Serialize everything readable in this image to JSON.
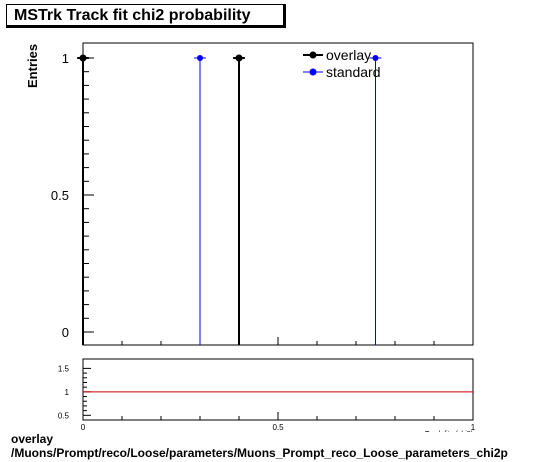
{
  "title": "MSTrk Track fit chi2 probability",
  "footer": {
    "line1": "overlay",
    "line2": "/Muons/Prompt/reco/Loose/parameters/Muons_Prompt_reco_Loose_parameters_chi2p"
  },
  "chart_data": [
    {
      "type": "scatter",
      "ylabel": "Entries",
      "xlim": [
        0,
        1
      ],
      "ylim": [
        0,
        1
      ],
      "yticks": [
        "0",
        "0.5",
        "1"
      ],
      "legend": {
        "placement": "top-right"
      },
      "series": [
        {
          "name": "overlay",
          "color": "#000000",
          "x": [
            0.0,
            0.4
          ],
          "xerr": 0.015,
          "y": [
            1,
            1
          ]
        },
        {
          "name": "standard",
          "color": "#0000ff",
          "x": [
            0.3,
            0.75
          ],
          "xerr": 0.015,
          "y": [
            1,
            1
          ]
        }
      ]
    },
    {
      "type": "line",
      "xlabel": "Track fit p(chi2)",
      "xlim": [
        0,
        1
      ],
      "ylim": [
        0.4,
        1.7
      ],
      "xticks": [
        "0",
        "0.5",
        "1"
      ],
      "yticks": [
        "0.5",
        "1",
        "1.5"
      ],
      "series": [
        {
          "name": "",
          "color": "#cc0000",
          "x": [
            0,
            1
          ],
          "y": [
            1,
            1
          ]
        }
      ]
    }
  ]
}
